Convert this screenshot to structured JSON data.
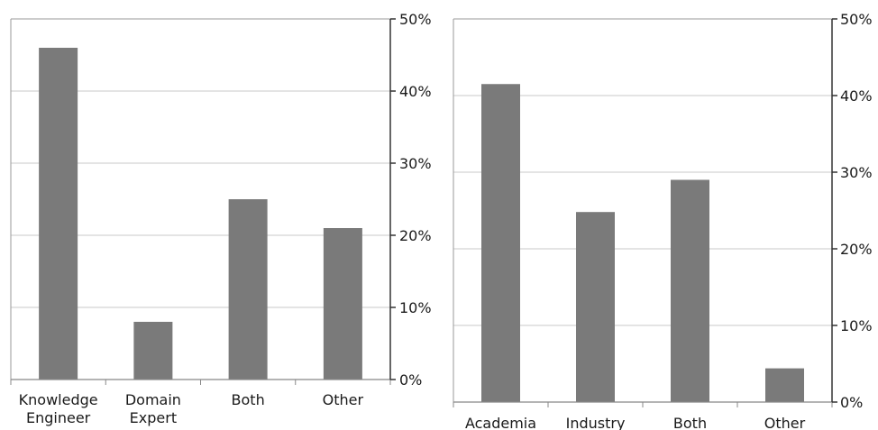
{
  "chart_data": [
    {
      "type": "bar",
      "categories": [
        "Knowledge\nEngineer",
        "Domain\nExpert",
        "Both",
        "Other"
      ],
      "values": [
        0.46,
        0.08,
        0.25,
        0.21
      ],
      "ylim": [
        0,
        0.5
      ],
      "yticks": [
        "0%",
        "10%",
        "20%",
        "30%",
        "40%",
        "50%"
      ],
      "y_axis_side": "right",
      "grid": true,
      "bar_color": "#7a7a7a"
    },
    {
      "type": "bar",
      "categories": [
        "Academia",
        "Industry",
        "Both",
        "Other"
      ],
      "values": [
        0.415,
        0.248,
        0.29,
        0.044
      ],
      "ylim": [
        0,
        0.5
      ],
      "yticks": [
        "0%",
        "10%",
        "20%",
        "30%",
        "40%",
        "50%"
      ],
      "y_axis_side": "right",
      "grid": true,
      "bar_color": "#7a7a7a"
    }
  ]
}
